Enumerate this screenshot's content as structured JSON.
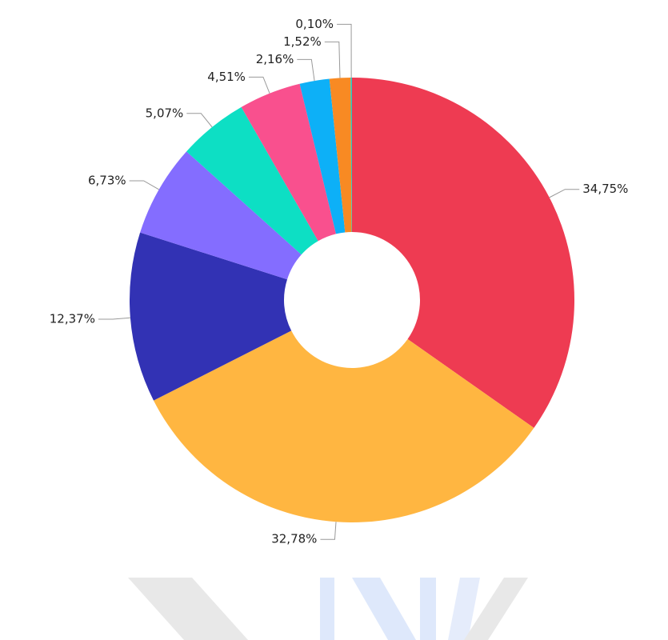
{
  "chart_data": {
    "type": "donut",
    "values": [
      34.75,
      32.78,
      12.37,
      6.73,
      5.07,
      4.51,
      2.16,
      1.52,
      0.1
    ],
    "value_labels": [
      "34,75%",
      "32,78%",
      "12,37%",
      "6,73%",
      "5,07%",
      "4,51%",
      "2,16%",
      "1,52%",
      "0,10%"
    ],
    "colors": [
      "#ee3b52",
      "#ffb641",
      "#3232b4",
      "#846dff",
      "#0ddfc4",
      "#f9508e",
      "#0db0f7",
      "#f88a23",
      "#2ec7c0"
    ]
  }
}
